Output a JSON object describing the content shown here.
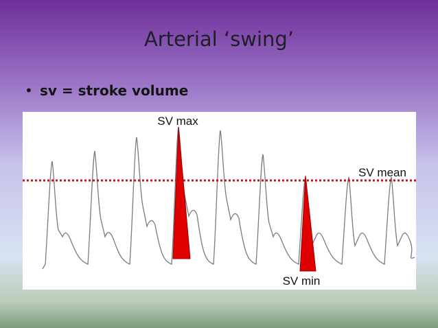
{
  "title": "Arterial ‘swing’",
  "bullets": [
    "sv = stroke volume"
  ],
  "diagram": {
    "labels": {
      "max": "SV max",
      "mean": "SV mean",
      "min": "SV min"
    }
  }
}
